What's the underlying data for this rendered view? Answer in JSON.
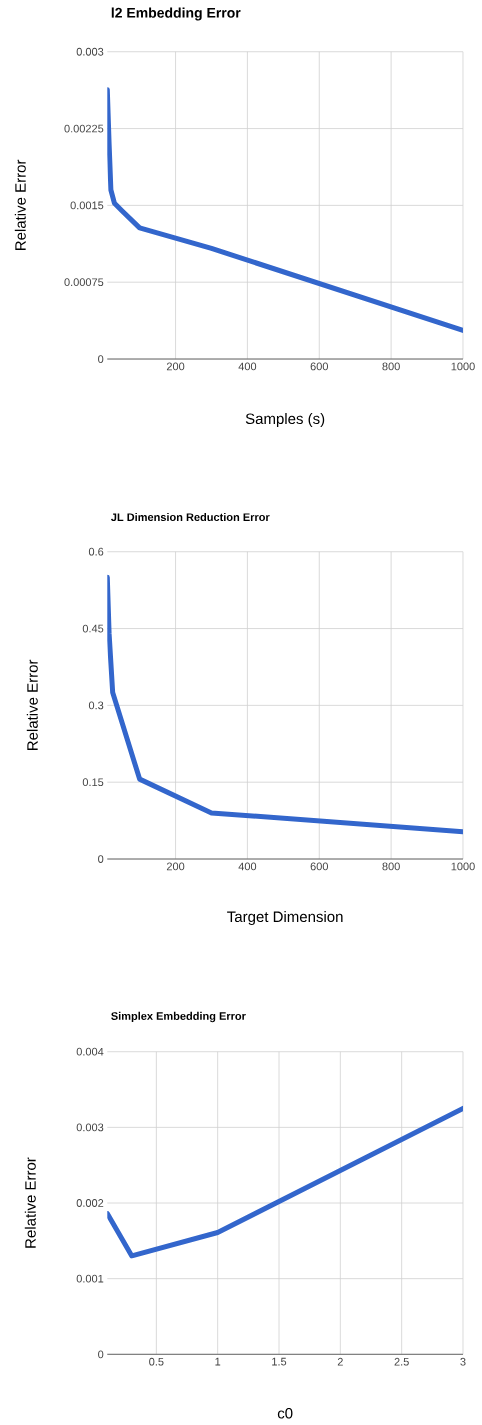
{
  "chart_data": [
    {
      "type": "line",
      "title": "l2 Embedding Error",
      "xlabel": "Samples (s)",
      "ylabel": "Relative Error",
      "x": [
        10,
        15,
        20,
        30,
        50,
        100,
        200,
        300,
        1000
      ],
      "series": [
        {
          "color": "#3366cc",
          "values": [
            0.00263,
            0.0021,
            0.00165,
            0.00152,
            0.00145,
            0.00128,
            0.00118,
            0.00108,
            0.00028
          ]
        }
      ],
      "xlim": [
        10,
        1000
      ],
      "ylim": [
        0,
        0.003
      ],
      "xticks": [
        200,
        400,
        600,
        800,
        1000
      ],
      "yticks": [
        0,
        0.00075,
        0.0015,
        0.00225,
        0.003
      ],
      "grid": true
    },
    {
      "type": "line",
      "title": "JL Dimension Reduction Error",
      "xlabel": "Target Dimension",
      "ylabel": "Relative Error",
      "x": [
        10,
        15,
        25,
        100,
        300,
        1000
      ],
      "series": [
        {
          "color": "#3366cc",
          "values": [
            0.55,
            0.44,
            0.325,
            0.156,
            0.09,
            0.053
          ]
        }
      ],
      "xlim": [
        10,
        1000
      ],
      "ylim": [
        0,
        0.6
      ],
      "xticks": [
        200,
        400,
        600,
        800,
        1000
      ],
      "yticks": [
        0,
        0.15,
        0.3,
        0.45,
        0.6
      ],
      "grid": true
    },
    {
      "type": "line",
      "title": "Simplex Embedding Error",
      "xlabel": "c0",
      "ylabel": "Relative Error",
      "x": [
        0.1,
        0.3,
        1,
        3
      ],
      "series": [
        {
          "color": "#3366cc",
          "values": [
            0.00186,
            0.0013,
            0.00161,
            0.00325
          ]
        }
      ],
      "xlim": [
        0.1,
        3
      ],
      "ylim": [
        0,
        0.004
      ],
      "xticks": [
        0.5,
        1,
        1.5,
        2,
        2.5,
        3
      ],
      "yticks": [
        0,
        0.001,
        0.002,
        0.003,
        0.004
      ],
      "grid": true
    }
  ]
}
